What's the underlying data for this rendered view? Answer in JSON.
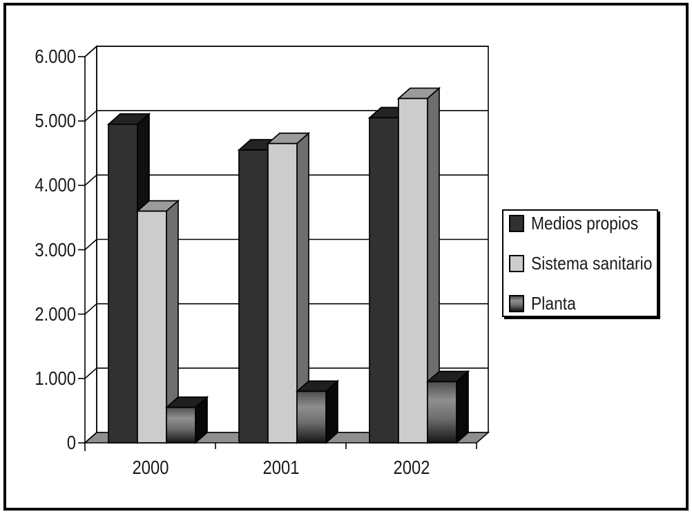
{
  "chart_data": {
    "type": "bar",
    "projection": "3d",
    "title": "",
    "xlabel": "",
    "ylabel": "",
    "categories": [
      "2000",
      "2001",
      "2002"
    ],
    "series": [
      {
        "name": "Medios propios",
        "values": [
          4950,
          4550,
          5050
        ],
        "colors": {
          "front": "#313131",
          "top": "#232323",
          "side": "#101010"
        }
      },
      {
        "name": "Sistema sanitario",
        "values": [
          3600,
          4650,
          5350
        ],
        "colors": {
          "front": "#cccccc",
          "top": "#9b9b9b",
          "side": "#6e6e6e"
        }
      },
      {
        "name": "Planta",
        "values": [
          550,
          800,
          950
        ],
        "colors": {
          "front_gradient": [
            [
              "0%",
              "#4e4e4e"
            ],
            [
              "30%",
              "#8f8f8f"
            ],
            [
              "60%",
              "#6e6e6e"
            ],
            [
              "100%",
              "#161616"
            ]
          ],
          "top": "#1f1f1f",
          "side": "#080808"
        }
      }
    ],
    "ylim": [
      0,
      6000
    ],
    "ytick_labels": [
      "6.000",
      "5.000",
      "4.000",
      "3.000",
      "2.000",
      "1.000",
      "0"
    ],
    "ytick_values": [
      6000,
      5000,
      4000,
      3000,
      2000,
      1000,
      0
    ],
    "grid": true,
    "legend_position": "right",
    "wall_color": "#ffffff",
    "floor_color": "#8f8f8f",
    "axis_color": "#000000"
  }
}
